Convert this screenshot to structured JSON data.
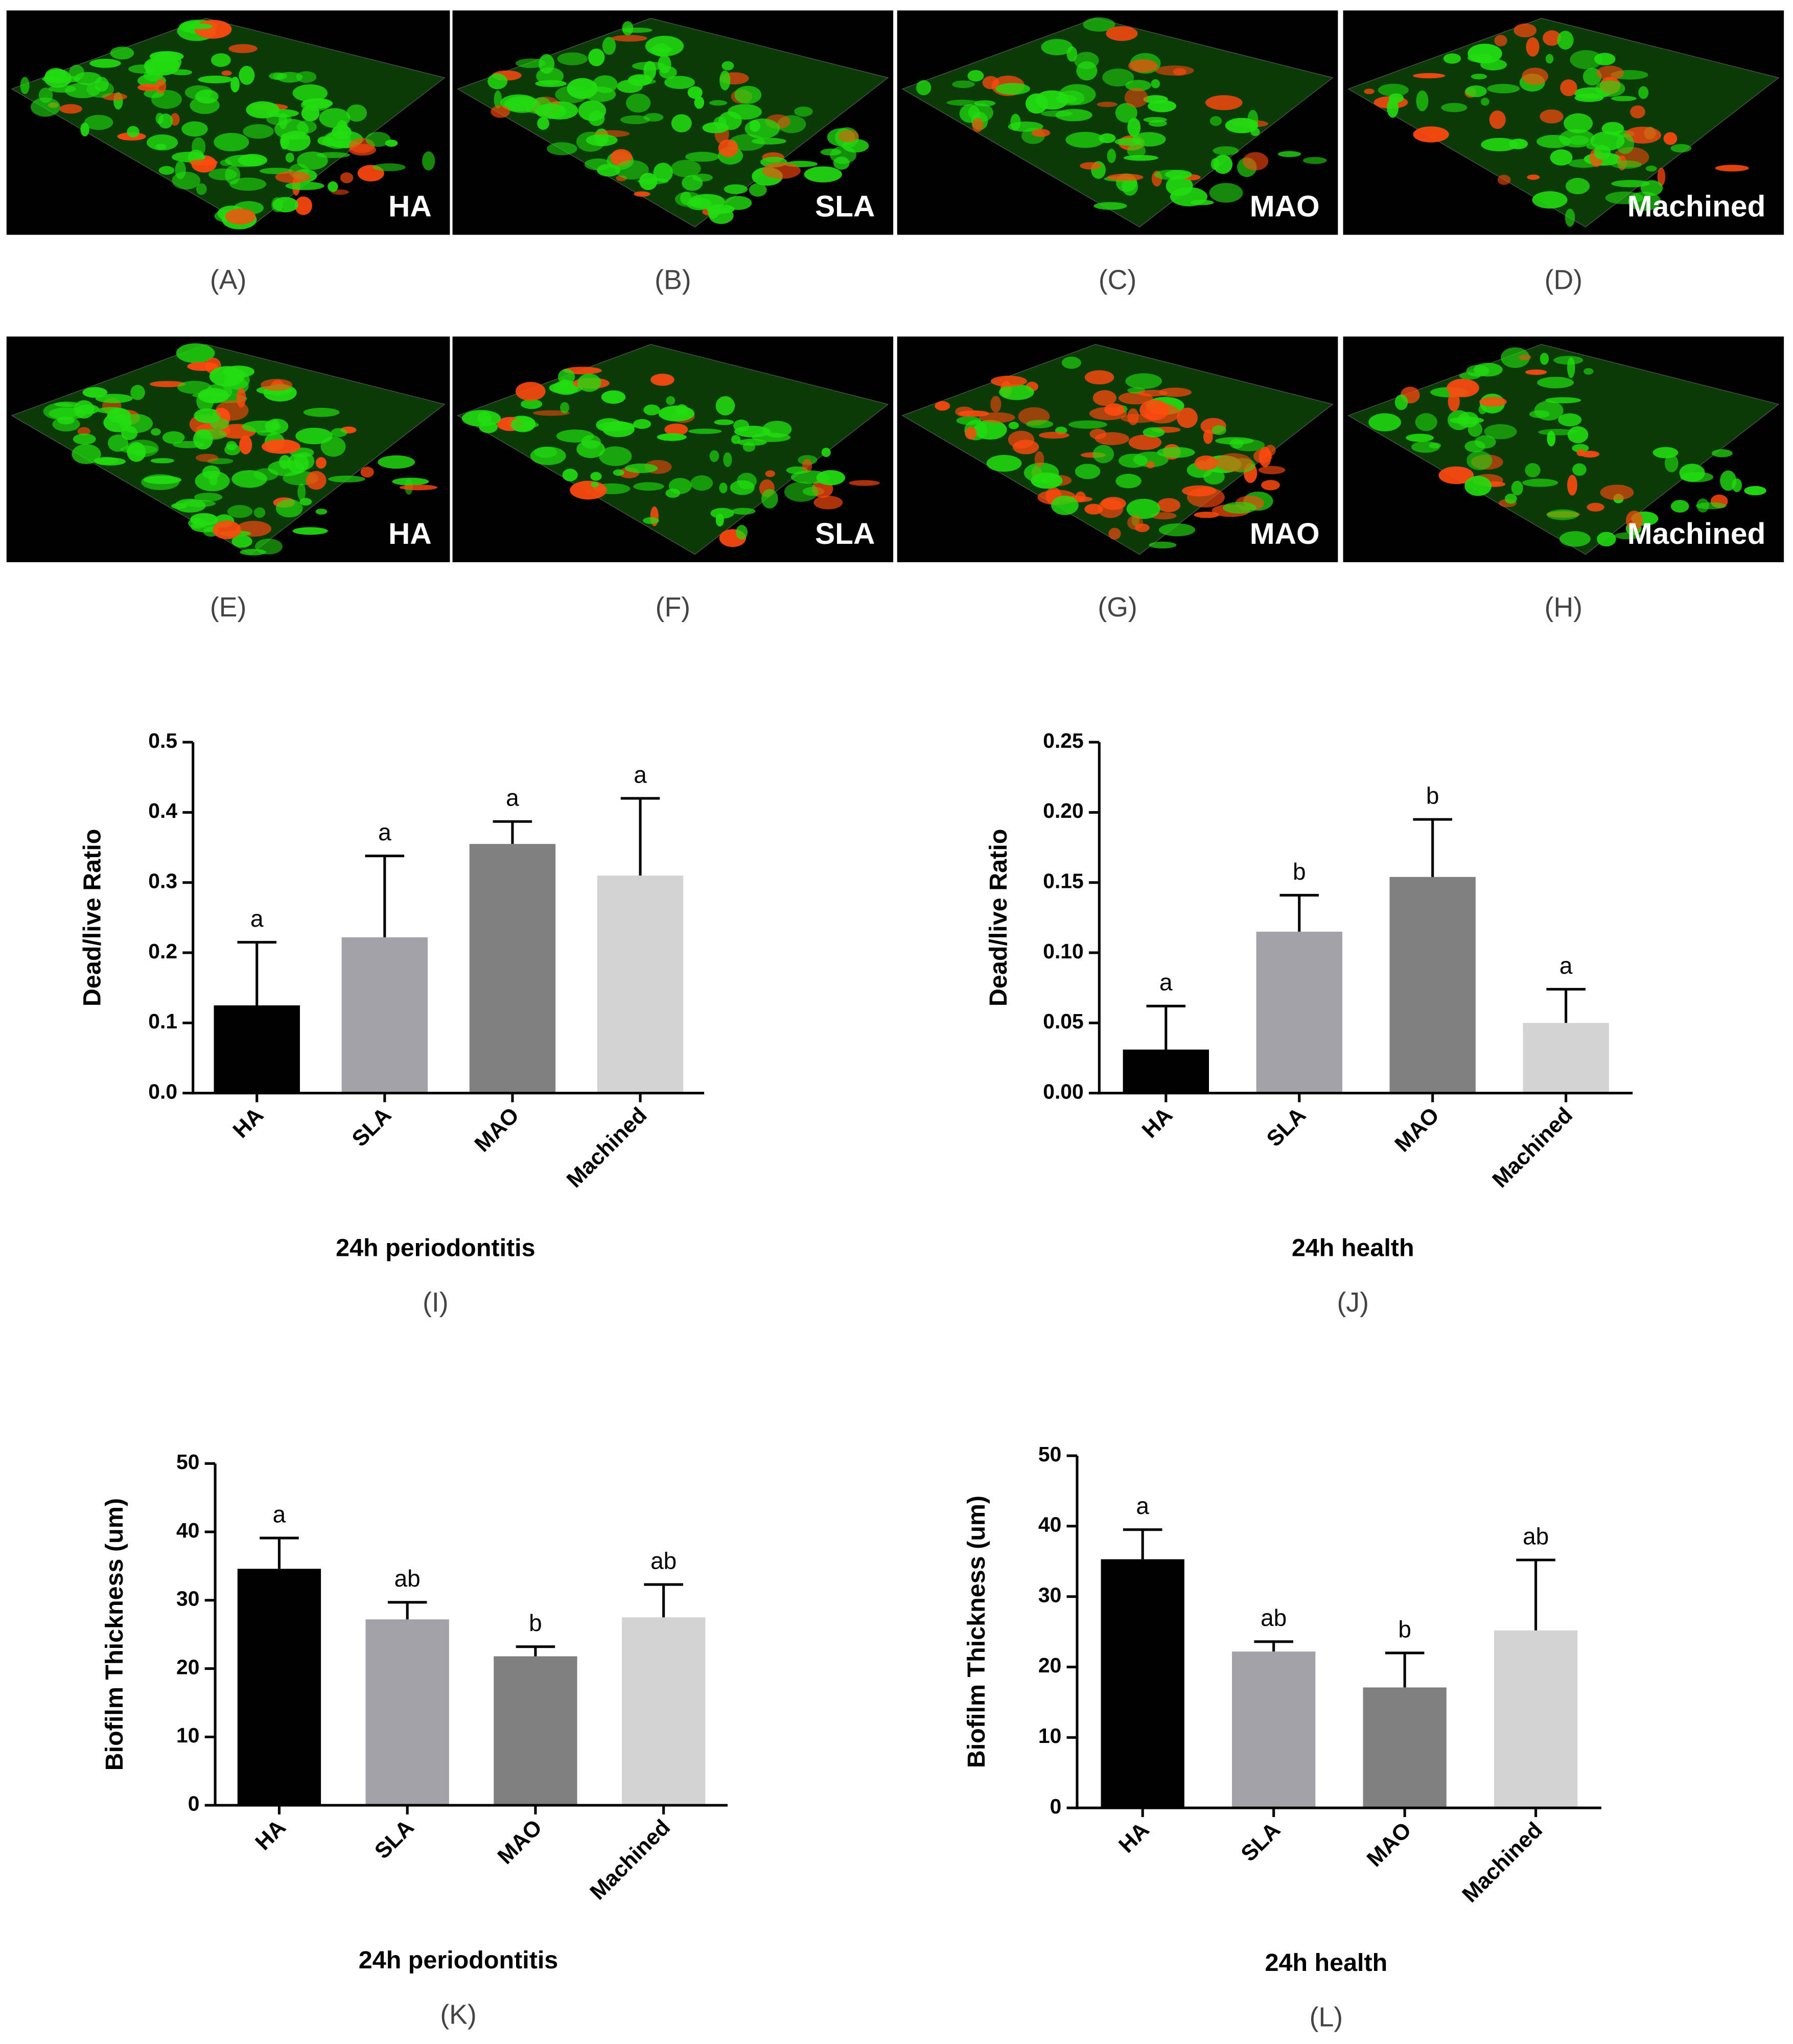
{
  "panels": [
    {
      "label": "HA",
      "caption": "(A)"
    },
    {
      "label": "SLA",
      "caption": "(B)"
    },
    {
      "label": "MAO",
      "caption": "(C)"
    },
    {
      "label": "Machined",
      "caption": "(D)"
    },
    {
      "label": "HA",
      "caption": "(E)"
    },
    {
      "label": "SLA",
      "caption": "(F)"
    },
    {
      "label": "MAO",
      "caption": "(G)"
    },
    {
      "label": "Machined",
      "caption": "(H)"
    }
  ],
  "chart_data": [
    {
      "type": "bar",
      "ylabel": "Dead/live Ratio",
      "xlabel": "24h periodontitis",
      "caption": "(I)",
      "categories": [
        "HA",
        "SLA",
        "MAO",
        "Machined"
      ],
      "values": [
        0.125,
        0.222,
        0.355,
        0.31
      ],
      "errors": [
        0.09,
        0.116,
        0.032,
        0.11
      ],
      "annotations": [
        "a",
        "a",
        "a",
        "a"
      ],
      "colors": [
        "#000000",
        "#a3a2a8",
        "#808080",
        "#d3d3d3"
      ],
      "ylim": [
        0,
        0.5
      ],
      "yticks": [
        {
          "value": 0,
          "label": "0.0"
        },
        0.1,
        0.2,
        0.3,
        0.4,
        0.5
      ]
    },
    {
      "type": "bar",
      "ylabel": "Dead/live Ratio",
      "xlabel": "24h health",
      "caption": "(J)",
      "categories": [
        "HA",
        "SLA",
        "MAO",
        "Machined"
      ],
      "values": [
        0.031,
        0.115,
        0.154,
        0.05
      ],
      "errors": [
        0.031,
        0.026,
        0.041,
        0.024
      ],
      "annotations": [
        "a",
        "b",
        "b",
        "a"
      ],
      "colors": [
        "#000000",
        "#a3a2a8",
        "#808080",
        "#d3d3d3"
      ],
      "ylim": [
        0,
        0.25
      ],
      "yticks": [
        {
          "value": 0,
          "label": "0.00"
        },
        0.05,
        {
          "value": 0.1,
          "label": "0.10"
        },
        0.15,
        {
          "value": 0.2,
          "label": "0.20"
        },
        0.25
      ]
    },
    {
      "type": "bar",
      "ylabel": "Biofilm Thickness (um)",
      "xlabel": "24h periodontitis",
      "caption": "(K)",
      "categories": [
        "HA",
        "SLA",
        "MAO",
        "Machined"
      ],
      "values": [
        34.6,
        27.2,
        21.8,
        27.5
      ],
      "errors": [
        4.5,
        2.5,
        1.4,
        4.8
      ],
      "annotations": [
        "a",
        "ab",
        "b",
        "ab"
      ],
      "colors": [
        "#000000",
        "#a3a2a8",
        "#808080",
        "#d3d3d3"
      ],
      "ylim": [
        0,
        50
      ],
      "yticks": [
        0,
        10,
        20,
        30,
        40,
        50
      ]
    },
    {
      "type": "bar",
      "ylabel": "Biofilm Thickness (um)",
      "xlabel": "24h health",
      "caption": "(L)",
      "categories": [
        "HA",
        "SLA",
        "MAO",
        "Machined"
      ],
      "values": [
        35.3,
        22.2,
        17.1,
        25.2
      ],
      "errors": [
        4.2,
        1.4,
        4.9,
        10
      ],
      "annotations": [
        "a",
        "ab",
        "b",
        "ab"
      ],
      "colors": [
        "#000000",
        "#a3a2a8",
        "#808080",
        "#d3d3d3"
      ],
      "ylim": [
        0,
        50
      ],
      "yticks": [
        0,
        10,
        20,
        30,
        40,
        50
      ]
    }
  ]
}
